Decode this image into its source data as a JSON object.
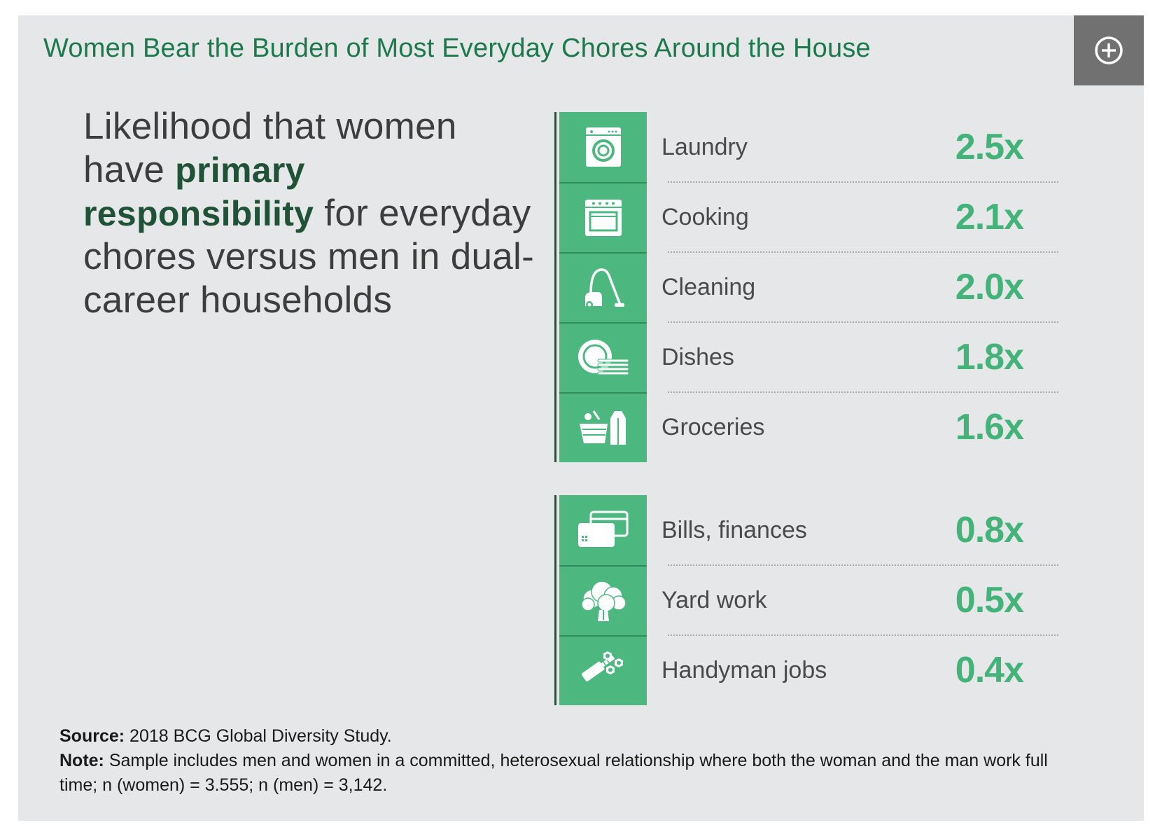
{
  "header": {
    "title": "Women Bear the Burden of Most Everyday Chores Around the House",
    "expand_icon": "plus-circle-icon"
  },
  "lead": {
    "part1": "Likelihood that women have ",
    "emphasis": "primary responsibility",
    "part2": " for everyday chores versus men in dual-career households"
  },
  "colors": {
    "panel_background": "#e6e7e8",
    "accent_green": "#4cb880",
    "value_green": "#44b37a",
    "title_green": "#1b7a4c"
  },
  "chart_data": {
    "type": "table",
    "unit_suffix": "x",
    "groups": [
      {
        "rows": [
          {
            "label": "Laundry",
            "value": 2.5,
            "display": "2.5x",
            "icon": "washing-machine-icon"
          },
          {
            "label": "Cooking",
            "value": 2.1,
            "display": "2.1x",
            "icon": "oven-icon"
          },
          {
            "label": "Cleaning",
            "value": 2.0,
            "display": "2.0x",
            "icon": "vacuum-cleaner-icon"
          },
          {
            "label": "Dishes",
            "value": 1.8,
            "display": "1.8x",
            "icon": "dishes-icon"
          },
          {
            "label": "Groceries",
            "value": 1.6,
            "display": "1.6x",
            "icon": "grocery-basket-icon"
          }
        ]
      },
      {
        "rows": [
          {
            "label": "Bills, finances",
            "value": 0.8,
            "display": "0.8x",
            "icon": "credit-card-icon"
          },
          {
            "label": "Yard work",
            "value": 0.5,
            "display": "0.5x",
            "icon": "tree-icon"
          },
          {
            "label": "Handyman jobs",
            "value": 0.4,
            "display": "0.4x",
            "icon": "bolt-nut-icon"
          }
        ]
      }
    ]
  },
  "notes": {
    "source_label": "Source:",
    "source_text": " 2018 BCG Global Diversity Study.",
    "note_label": "Note:",
    "note_text": " Sample includes men and women in a committed, heterosexual relationship where both the woman and the man work full time; n (women) = 3.555; n (men) = 3,142."
  }
}
